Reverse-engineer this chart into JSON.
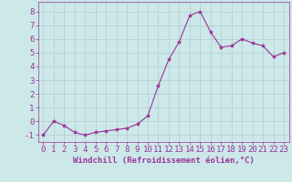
{
  "x": [
    0,
    1,
    2,
    3,
    4,
    5,
    6,
    7,
    8,
    9,
    10,
    11,
    12,
    13,
    14,
    15,
    16,
    17,
    18,
    19,
    20,
    21,
    22,
    23
  ],
  "y": [
    -1.0,
    0.0,
    -0.3,
    -0.8,
    -1.0,
    -0.8,
    -0.7,
    -0.6,
    -0.5,
    -0.2,
    0.4,
    2.6,
    4.5,
    5.8,
    7.7,
    8.0,
    6.5,
    5.4,
    5.5,
    6.0,
    5.7,
    5.5,
    4.7,
    5.0
  ],
  "line_color": "#993399",
  "marker": "*",
  "marker_size": 3,
  "xlabel": "Windchill (Refroidissement éolien,°C)",
  "xlim": [
    -0.5,
    23.5
  ],
  "ylim": [
    -1.5,
    8.7
  ],
  "yticks": [
    -1,
    0,
    1,
    2,
    3,
    4,
    5,
    6,
    7,
    8
  ],
  "xticks": [
    0,
    1,
    2,
    3,
    4,
    5,
    6,
    7,
    8,
    9,
    10,
    11,
    12,
    13,
    14,
    15,
    16,
    17,
    18,
    19,
    20,
    21,
    22,
    23
  ],
  "bg_color": "#cce8e8",
  "grid_color": "#b0cccc",
  "line_width": 0.8,
  "label_color": "#993399",
  "spine_color": "#993399",
  "font_size": 6.5
}
